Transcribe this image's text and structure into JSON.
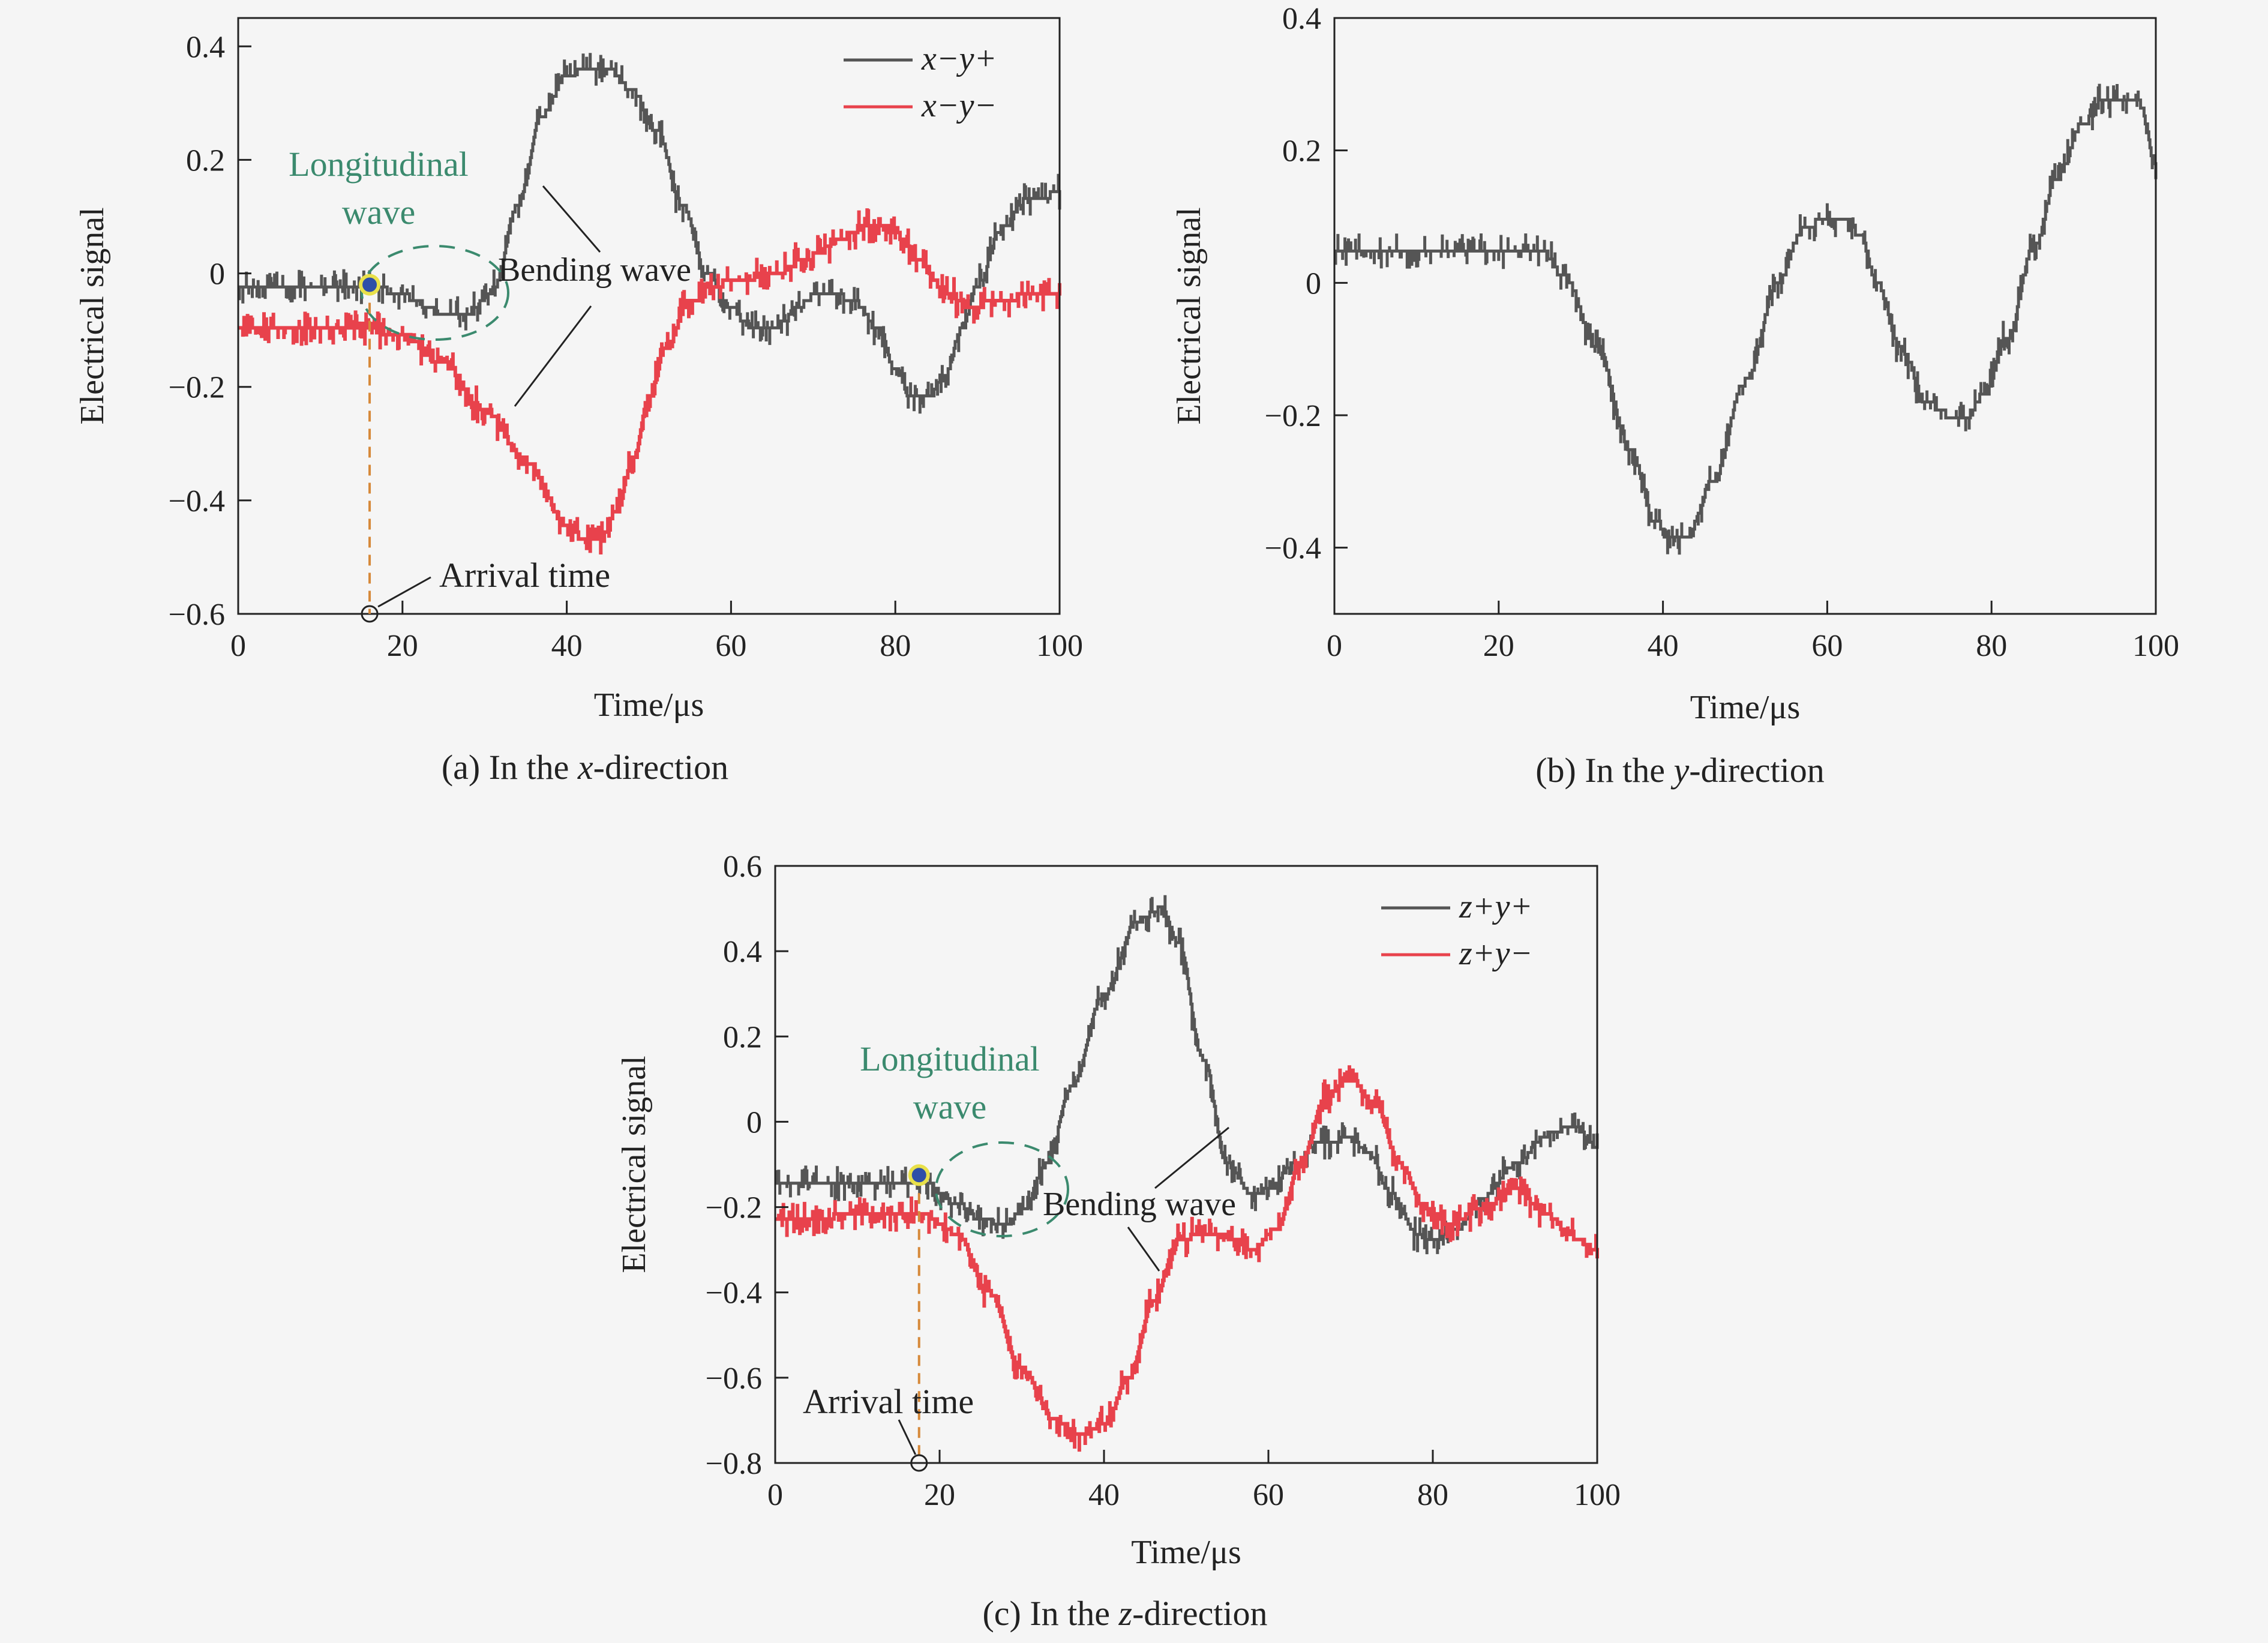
{
  "colors": {
    "background": "#f5f5f5",
    "axis": "#222222",
    "dark_series": "#555555",
    "red_series": "#e8424c",
    "annotation_green": "#3b8a6e",
    "arrival_line": "#d6893a",
    "marker_fill": "#2f4fa8",
    "marker_ring": "#e8e04a"
  },
  "chart_data": [
    {
      "id": "a",
      "type": "line",
      "caption": {
        "prefix": "(a) In the ",
        "italic": "x",
        "suffix": "-direction"
      },
      "xlabel": "Time/μs",
      "ylabel": "Electrical signal",
      "xlim": [
        0,
        100
      ],
      "ylim": [
        -0.6,
        0.45
      ],
      "xticks": [
        0,
        20,
        40,
        60,
        80,
        100
      ],
      "yticks": [
        -0.6,
        -0.4,
        -0.2,
        0,
        0.2,
        0.4
      ],
      "ytick_labels": [
        "−0.6",
        "−0.4",
        "−0.2",
        "0",
        "0.2",
        "0.4"
      ],
      "grid": false,
      "legend_position": "top-right",
      "series": [
        {
          "name": "x−y+",
          "legend_italic_parts": [
            "x",
            "y"
          ],
          "color_key": "dark_series",
          "x": [
            0,
            10,
            16,
            20,
            25,
            28,
            31,
            34,
            37,
            40,
            42,
            45,
            48,
            51,
            54,
            57,
            60,
            62,
            64,
            66,
            68,
            70,
            72,
            75,
            78,
            80,
            82,
            84,
            86,
            88,
            90,
            93,
            96,
            100
          ],
          "y": [
            -0.02,
            -0.02,
            -0.02,
            -0.04,
            -0.07,
            -0.07,
            -0.03,
            0.12,
            0.28,
            0.35,
            0.36,
            0.36,
            0.32,
            0.25,
            0.12,
            0.0,
            -0.06,
            -0.09,
            -0.1,
            -0.09,
            -0.06,
            -0.04,
            -0.03,
            -0.05,
            -0.1,
            -0.17,
            -0.22,
            -0.22,
            -0.18,
            -0.1,
            -0.02,
            0.08,
            0.13,
            0.14
          ]
        },
        {
          "name": "x−y−",
          "legend_italic_parts": [
            "x",
            "y"
          ],
          "color_key": "red_series",
          "x": [
            0,
            10,
            16,
            20,
            25,
            30,
            35,
            40,
            42,
            44,
            46,
            48,
            50,
            52,
            55,
            58,
            61,
            65,
            70,
            73,
            76,
            78,
            80,
            83,
            86,
            89,
            92,
            96,
            100
          ],
          "y": [
            -0.1,
            -0.1,
            -0.1,
            -0.11,
            -0.16,
            -0.24,
            -0.33,
            -0.44,
            -0.47,
            -0.47,
            -0.42,
            -0.33,
            -0.22,
            -0.13,
            -0.05,
            -0.02,
            -0.01,
            0.0,
            0.03,
            0.06,
            0.08,
            0.09,
            0.07,
            0.02,
            -0.03,
            -0.06,
            -0.05,
            -0.04,
            -0.04
          ]
        }
      ],
      "annotations": {
        "longitudinal_lines": [
          "Longitudinal",
          "wave"
        ],
        "bending": "Bending wave",
        "arrival": "Arrival time",
        "arrival_x": 16,
        "arrival_marker_y": -0.02
      }
    },
    {
      "id": "b",
      "type": "line",
      "caption": {
        "prefix": "(b) In the ",
        "italic": "y",
        "suffix": "-direction"
      },
      "xlabel": "Time/μs",
      "ylabel": "Electrical signal",
      "xlim": [
        0,
        100
      ],
      "ylim": [
        -0.5,
        0.4
      ],
      "xticks": [
        0,
        20,
        40,
        60,
        80,
        100
      ],
      "yticks": [
        -0.4,
        -0.2,
        0,
        0.2,
        0.4
      ],
      "ytick_labels": [
        "−0.4",
        "−0.2",
        "0",
        "0.2",
        "0.4"
      ],
      "grid": false,
      "series": [
        {
          "color_key": "dark_series",
          "x": [
            0,
            10,
            20,
            25,
            28,
            32,
            36,
            39,
            41,
            43,
            46,
            50,
            54,
            57,
            60,
            62,
            64,
            66,
            69,
            72,
            75,
            77,
            79,
            82,
            85,
            88,
            91,
            94,
            96,
            98,
            100
          ],
          "y": [
            0.05,
            0.05,
            0.05,
            0.05,
            0.01,
            -0.1,
            -0.25,
            -0.36,
            -0.39,
            -0.38,
            -0.3,
            -0.15,
            0.0,
            0.08,
            0.1,
            0.1,
            0.07,
            0.0,
            -0.1,
            -0.18,
            -0.2,
            -0.2,
            -0.17,
            -0.08,
            0.05,
            0.16,
            0.24,
            0.28,
            0.28,
            0.27,
            0.18
          ]
        }
      ]
    },
    {
      "id": "c",
      "type": "line",
      "caption": {
        "prefix": "(c) In the ",
        "italic": "z",
        "suffix": "-direction"
      },
      "xlabel": "Time/μs",
      "ylabel": "Electrical signal",
      "xlim": [
        0,
        100
      ],
      "ylim": [
        -0.8,
        0.6
      ],
      "xticks": [
        0,
        20,
        40,
        60,
        80,
        100
      ],
      "yticks": [
        -0.8,
        -0.6,
        -0.4,
        -0.2,
        0,
        0.2,
        0.4,
        0.6
      ],
      "ytick_labels": [
        "−0.8",
        "−0.6",
        "−0.4",
        "−0.2",
        "0",
        "0.2",
        "0.4",
        "0.6"
      ],
      "grid": false,
      "legend_position": "top-right",
      "series": [
        {
          "name": "z+y+",
          "legend_italic_parts": [
            "z",
            "y"
          ],
          "color_key": "dark_series",
          "x": [
            0,
            10,
            18,
            22,
            25,
            28,
            30,
            33,
            36,
            40,
            44,
            47,
            49,
            52,
            55,
            58,
            60,
            63,
            66,
            70,
            72,
            75,
            78,
            80,
            83,
            86,
            90,
            94,
            97,
            100
          ],
          "y": [
            -0.14,
            -0.14,
            -0.14,
            -0.19,
            -0.23,
            -0.24,
            -0.21,
            -0.1,
            0.08,
            0.3,
            0.47,
            0.5,
            0.42,
            0.15,
            -0.1,
            -0.17,
            -0.16,
            -0.1,
            -0.05,
            -0.04,
            -0.07,
            -0.17,
            -0.26,
            -0.28,
            -0.25,
            -0.18,
            -0.1,
            -0.03,
            -0.01,
            -0.06
          ]
        },
        {
          "name": "z+y−",
          "legend_italic_parts": [
            "z",
            "y"
          ],
          "color_key": "red_series",
          "x": [
            0,
            10,
            18,
            22,
            26,
            30,
            34,
            37,
            40,
            43,
            46,
            49,
            52,
            55,
            58,
            61,
            64,
            67,
            70,
            73,
            76,
            79,
            82,
            86,
            90,
            94,
            97,
            100
          ],
          "y": [
            -0.23,
            -0.22,
            -0.22,
            -0.26,
            -0.4,
            -0.58,
            -0.7,
            -0.73,
            -0.71,
            -0.6,
            -0.42,
            -0.28,
            -0.26,
            -0.27,
            -0.3,
            -0.25,
            -0.09,
            0.06,
            0.1,
            0.04,
            -0.1,
            -0.2,
            -0.24,
            -0.2,
            -0.16,
            -0.22,
            -0.27,
            -0.3
          ]
        }
      ],
      "annotations": {
        "longitudinal_lines": [
          "Longitudinal",
          "wave"
        ],
        "bending": "Bending wave",
        "arrival": "Arrival time",
        "arrival_x": 17.5,
        "arrival_marker_y": -0.125
      }
    }
  ]
}
